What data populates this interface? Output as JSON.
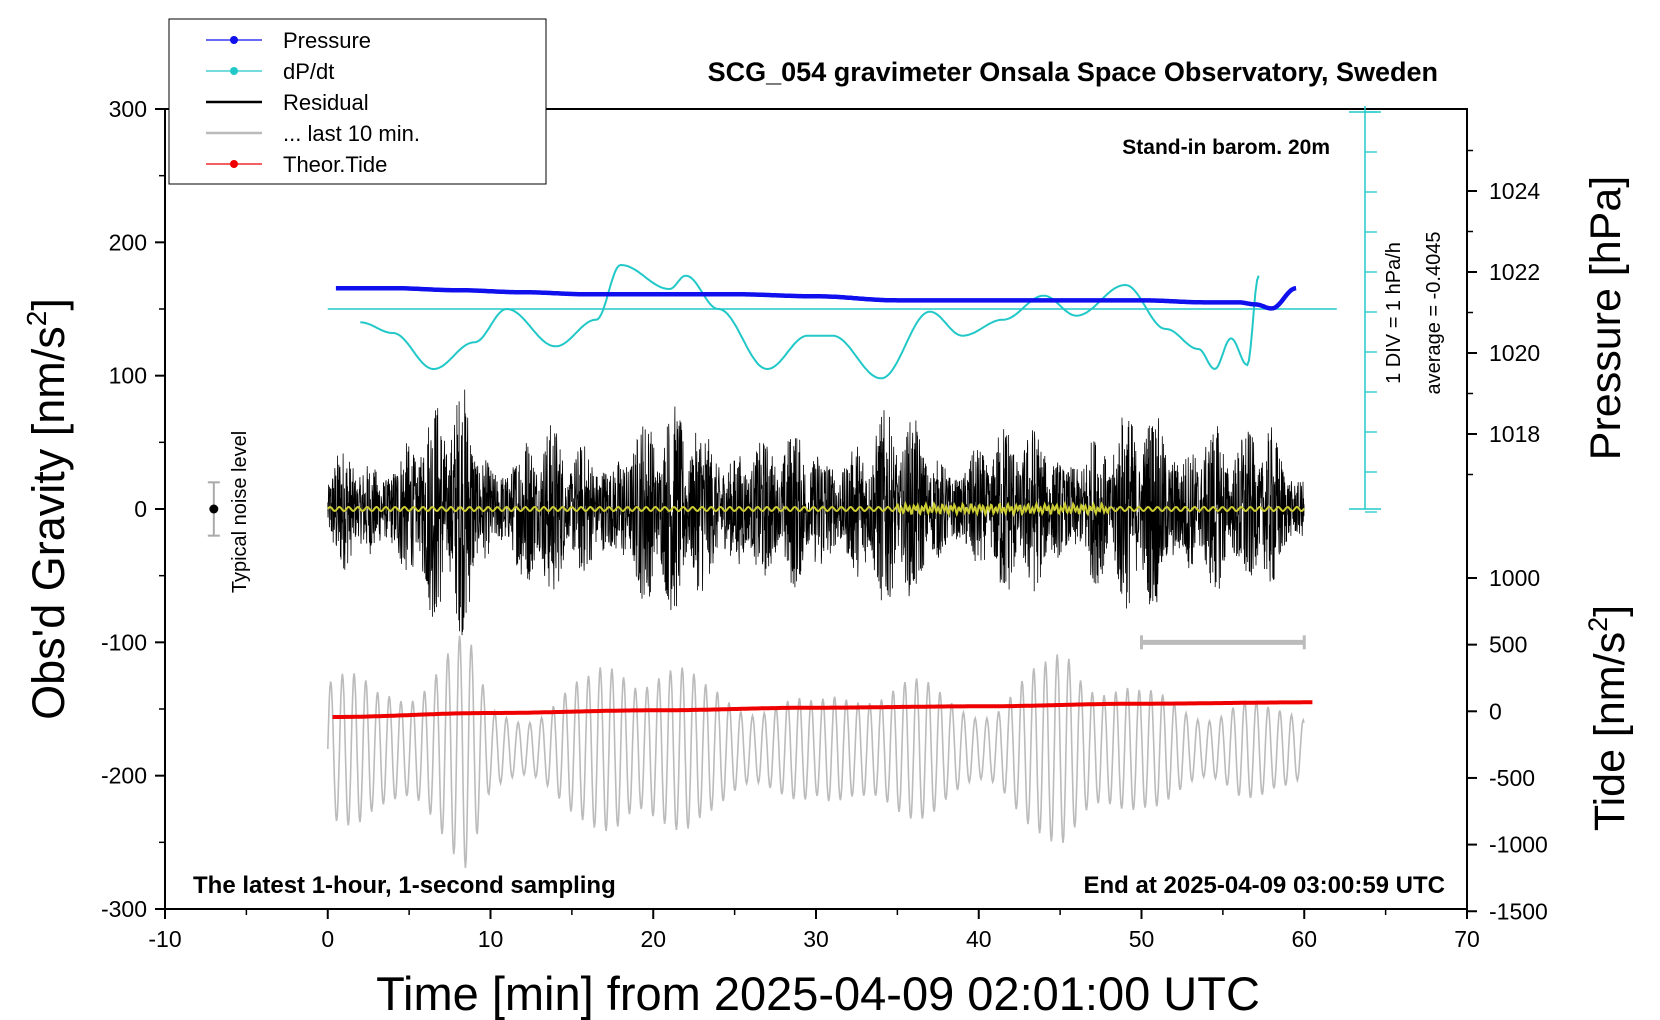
{
  "chart_data": {
    "type": "line",
    "title": "SCG_054 gravimeter Onsala Space Observatory, Sweden",
    "xlabel": "Time [min] from 2025-04-09 02:01:00 UTC",
    "xlim": [
      -10,
      70
    ],
    "xticks": [
      "-10",
      "0",
      "10",
      "20",
      "30",
      "40",
      "50",
      "60",
      "70"
    ],
    "left_axis": {
      "label": "Obs'd Gravity [nm/s",
      "label_sup": "2",
      "label_end": "]",
      "ylim": [
        -300,
        300
      ],
      "ticks": [
        "300",
        "200",
        "100",
        "0",
        "-100",
        "-200",
        "-300"
      ]
    },
    "right_axis_pressure": {
      "label": "Pressure [hPa]",
      "ticks": [
        "1024",
        "1022",
        "1020",
        "1018"
      ]
    },
    "right_axis_tide": {
      "label": "Tide [nm/s",
      "label_sup": "2",
      "label_end": "]",
      "ticks": [
        "1000",
        "500",
        "0",
        "-500",
        "-1000",
        "-1500"
      ]
    },
    "legend": {
      "position": "top-left",
      "entries": [
        {
          "label": "Pressure",
          "color": "#1010ee"
        },
        {
          "label": "dP/dt",
          "color": "#22c8c8"
        },
        {
          "label": "Residual",
          "color": "#000000"
        },
        {
          "label": "... last 10 min.",
          "color": "#bbbbbb"
        },
        {
          "label": "Theor.Tide",
          "color": "#ee0000"
        }
      ]
    },
    "annotations": {
      "barometer": "Stand-in barom. 20m",
      "dpdt_scale": "1 DIV = 1 hPa/h",
      "dpdt_average": "average = -0.4045",
      "noise": "Typical noise level",
      "bottom_left": "The latest 1-hour, 1-second sampling",
      "bottom_right": "End at 2025-04-09 03:00:59 UTC"
    },
    "series": [
      {
        "name": "Pressure",
        "color": "#1010ee",
        "axis": "pressure_hpa",
        "x": [
          0.5,
          4,
          8,
          12,
          16,
          20,
          25,
          30,
          35,
          40,
          45,
          50,
          54,
          56,
          57,
          58,
          59.5
        ],
        "y": [
          1021.6,
          1021.6,
          1021.55,
          1021.5,
          1021.45,
          1021.45,
          1021.45,
          1021.4,
          1021.3,
          1021.3,
          1021.3,
          1021.3,
          1021.25,
          1021.25,
          1021.2,
          1021.1,
          1021.6
        ]
      },
      {
        "name": "dP/dt",
        "color": "#22c8c8",
        "axis": "gravity",
        "x": [
          2,
          4,
          6.5,
          9,
          11,
          14,
          16.5,
          18,
          21,
          22,
          24,
          27,
          29.5,
          31,
          34,
          37,
          39,
          41.5,
          44,
          46,
          49,
          51.5,
          53.5,
          54.5,
          55.5,
          56.5,
          57.2
        ],
        "y": [
          140,
          132,
          105,
          125,
          150,
          122,
          142,
          183,
          165,
          175,
          150,
          105,
          130,
          130,
          98,
          148,
          130,
          142,
          160,
          145,
          168,
          135,
          120,
          105,
          128,
          108,
          175
        ]
      },
      {
        "name": "dP/dt reference (average)",
        "color": "#22c8c8",
        "axis": "gravity",
        "x": [
          0,
          62
        ],
        "y": [
          150,
          150
        ]
      },
      {
        "name": "Residual",
        "color": "#000000",
        "axis": "gravity",
        "x": [
          0,
          60
        ],
        "envelope_x": [
          0,
          3,
          6,
          8.5,
          10,
          13,
          15,
          18,
          21,
          24,
          27,
          30,
          33,
          36,
          39,
          42,
          45,
          48,
          51,
          53,
          56,
          58,
          60
        ],
        "envelope": [
          45,
          60,
          80,
          110,
          65,
          75,
          55,
          85,
          80,
          90,
          55,
          70,
          80,
          75,
          60,
          70,
          80,
          65,
          100,
          90,
          55,
          90,
          40
        ]
      },
      {
        "name": "Residual (smoothed)",
        "color": "#cccc33",
        "axis": "gravity",
        "x": [
          0,
          60
        ],
        "y": [
          0,
          0
        ]
      },
      {
        "name": "... last 10 min.",
        "color": "#bbbbbb",
        "axis": "gravity",
        "x": [
          0,
          60
        ],
        "center": -180,
        "envelope_x": [
          0,
          3,
          6,
          8.5,
          10,
          13,
          16,
          18,
          20,
          23,
          27,
          30,
          33,
          36,
          38,
          41,
          44,
          45.5,
          47,
          50,
          53,
          56,
          58,
          60
        ],
        "envelope": [
          65,
          50,
          80,
          90,
          35,
          40,
          55,
          90,
          90,
          50,
          50,
          35,
          70,
          55,
          45,
          45,
          65,
          95,
          85,
          45,
          40,
          45,
          30,
          35
        ]
      },
      {
        "name": "Theor.Tide",
        "color": "#ee0000",
        "axis": "gravity",
        "x": [
          0.3,
          10,
          20,
          30,
          40,
          50,
          60.5
        ],
        "y": [
          -156,
          -153,
          -151,
          -149,
          -148,
          -146,
          -145
        ]
      }
    ],
    "noise_bar": {
      "x": -7,
      "y": 0,
      "half_range": 20
    },
    "last10_bracket": {
      "x": [
        50,
        60
      ],
      "y": -100
    }
  }
}
